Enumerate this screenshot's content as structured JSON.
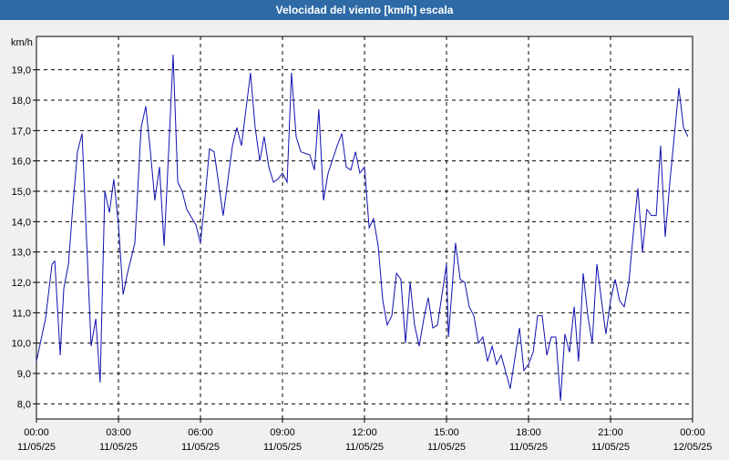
{
  "chart_data": {
    "type": "line",
    "title": "Velocidad del viento [km/h] escala",
    "y_label": "km/h",
    "xlim": [
      0,
      24
    ],
    "ylim": [
      7.5,
      20.1
    ],
    "grid": true,
    "yticks": [
      {
        "value": 8,
        "label": "8,0"
      },
      {
        "value": 9,
        "label": "9,0"
      },
      {
        "value": 10,
        "label": "10,0"
      },
      {
        "value": 11,
        "label": "11,0"
      },
      {
        "value": 12,
        "label": "12,0"
      },
      {
        "value": 13,
        "label": "13,0"
      },
      {
        "value": 14,
        "label": "14,0"
      },
      {
        "value": 15,
        "label": "15,0"
      },
      {
        "value": 16,
        "label": "16,0"
      },
      {
        "value": 17,
        "label": "17,0"
      },
      {
        "value": 18,
        "label": "18,0"
      },
      {
        "value": 19,
        "label": "19,0"
      }
    ],
    "xticks": [
      {
        "value": 0,
        "label": "00:00",
        "date": "11/05/25"
      },
      {
        "value": 3,
        "label": "03:00",
        "date": "11/05/25"
      },
      {
        "value": 6,
        "label": "06:00",
        "date": "11/05/25"
      },
      {
        "value": 9,
        "label": "09:00",
        "date": "11/05/25"
      },
      {
        "value": 12,
        "label": "12:00",
        "date": "11/05/25"
      },
      {
        "value": 15,
        "label": "15:00",
        "date": "11/05/25"
      },
      {
        "value": 18,
        "label": "18:00",
        "date": "11/05/25"
      },
      {
        "value": 21,
        "label": "21:00",
        "date": "11/05/25"
      },
      {
        "value": 24,
        "label": "00:00",
        "date": "12/05/25"
      }
    ],
    "x": [
      0,
      0.33,
      0.57,
      0.67,
      0.87,
      1,
      1.17,
      1.33,
      1.5,
      1.67,
      1.9,
      2,
      2.17,
      2.33,
      2.5,
      2.67,
      2.83,
      3,
      3.17,
      3.33,
      3.6,
      3.83,
      4,
      4.17,
      4.33,
      4.5,
      4.67,
      4.83,
      5,
      5.17,
      5.33,
      5.5,
      5.83,
      6,
      6.17,
      6.33,
      6.5,
      6.83,
      7.17,
      7.33,
      7.5,
      7.83,
      8,
      8.17,
      8.33,
      8.5,
      8.67,
      8.83,
      9,
      9.17,
      9.33,
      9.5,
      9.67,
      10,
      10.17,
      10.33,
      10.5,
      10.67,
      11,
      11.17,
      11.33,
      11.5,
      11.67,
      11.83,
      12,
      12.17,
      12.33,
      12.5,
      12.67,
      12.83,
      13,
      13.17,
      13.33,
      13.5,
      13.67,
      13.83,
      14,
      14.17,
      14.33,
      14.5,
      14.67,
      15,
      15.07,
      15.33,
      15.5,
      15.67,
      15.83,
      16,
      16.17,
      16.33,
      16.5,
      16.67,
      16.83,
      17,
      17.33,
      17.67,
      17.83,
      18,
      18.17,
      18.33,
      18.5,
      18.67,
      18.83,
      19,
      19.17,
      19.33,
      19.5,
      19.67,
      19.83,
      20,
      20.17,
      20.33,
      20.5,
      20.67,
      20.83,
      21,
      21.17,
      21.33,
      21.5,
      21.67,
      21.83,
      22,
      22.17,
      22.33,
      22.5,
      22.67,
      22.83,
      23,
      23.17,
      23.33,
      23.5,
      23.67,
      23.83
    ],
    "series": [
      {
        "name": "Velocidad del viento",
        "color": "#1010b0",
        "values": [
          9.4,
          10.8,
          12.6,
          12.7,
          9.6,
          11.8,
          12.6,
          14.5,
          16.3,
          16.9,
          12.0,
          9.9,
          10.8,
          8.7,
          15.0,
          14.3,
          15.4,
          13.9,
          11.6,
          12.3,
          13.3,
          17.1,
          17.8,
          16.3,
          14.7,
          15.8,
          13.2,
          16.2,
          19.5,
          15.3,
          15.0,
          14.4,
          13.9,
          13.3,
          14.8,
          16.4,
          16.3,
          14.2,
          16.5,
          17.1,
          16.5,
          18.9,
          17.1,
          16.0,
          16.8,
          15.8,
          15.3,
          15.4,
          15.6,
          15.3,
          18.9,
          16.8,
          16.3,
          16.2,
          15.7,
          17.7,
          14.7,
          15.6,
          16.5,
          16.9,
          15.8,
          15.7,
          16.3,
          15.6,
          15.8,
          13.8,
          14.1,
          13.2,
          11.4,
          10.6,
          10.9,
          12.3,
          12.1,
          10.0,
          12.0,
          10.6,
          9.9,
          10.8,
          11.5,
          10.5,
          10.6,
          12.6,
          10.2,
          13.3,
          12.1,
          12.0,
          11.2,
          10.9,
          10.0,
          10.2,
          9.4,
          9.9,
          9.3,
          9.6,
          8.5,
          10.5,
          9.1,
          9.3,
          9.7,
          10.9,
          10.9,
          9.6,
          10.2,
          10.2,
          8.1,
          10.3,
          9.7,
          11.2,
          9.4,
          12.3,
          10.9,
          10.0,
          12.6,
          11.4,
          10.3,
          11.4,
          12.1,
          11.4,
          11.2,
          12.0,
          13.6,
          15.1,
          13.0,
          14.4,
          14.2,
          14.2,
          16.5,
          13.5,
          15.3,
          16.8,
          18.4,
          17.1,
          16.8
        ]
      }
    ]
  }
}
